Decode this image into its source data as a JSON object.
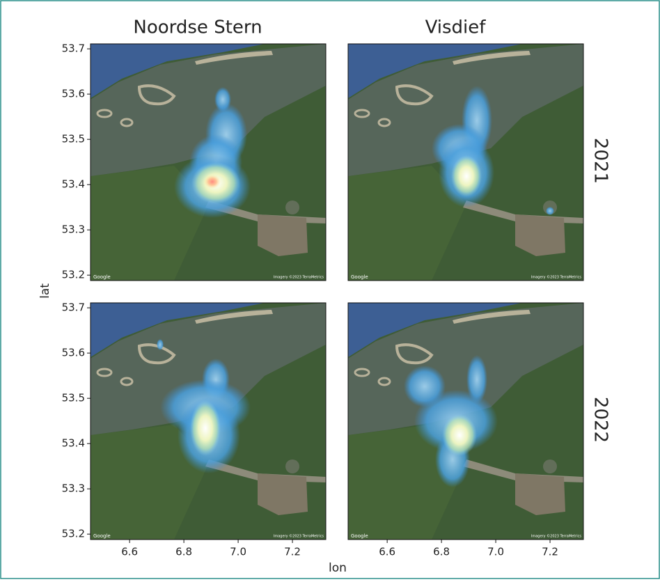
{
  "chart_data": {
    "type": "density_map",
    "facet_columns": [
      "Noordse Stern",
      "Visdief"
    ],
    "facet_rows": [
      "2021",
      "2022"
    ],
    "xlabel": "lon",
    "ylabel": "lat",
    "xlim": [
      6.456,
      7.323
    ],
    "xticks": [
      6.6,
      6.8,
      {
        "value": 7,
        "label": "7.0"
      },
      7.2
    ],
    "ylim": [
      53.188,
      53.711
    ],
    "yticks": [
      53.2,
      53.3,
      53.4,
      53.5,
      53.6,
      53.7
    ],
    "map_credit": "Google",
    "imagery_credit": "Imagery ©2023 TerraMetrics"
  }
}
